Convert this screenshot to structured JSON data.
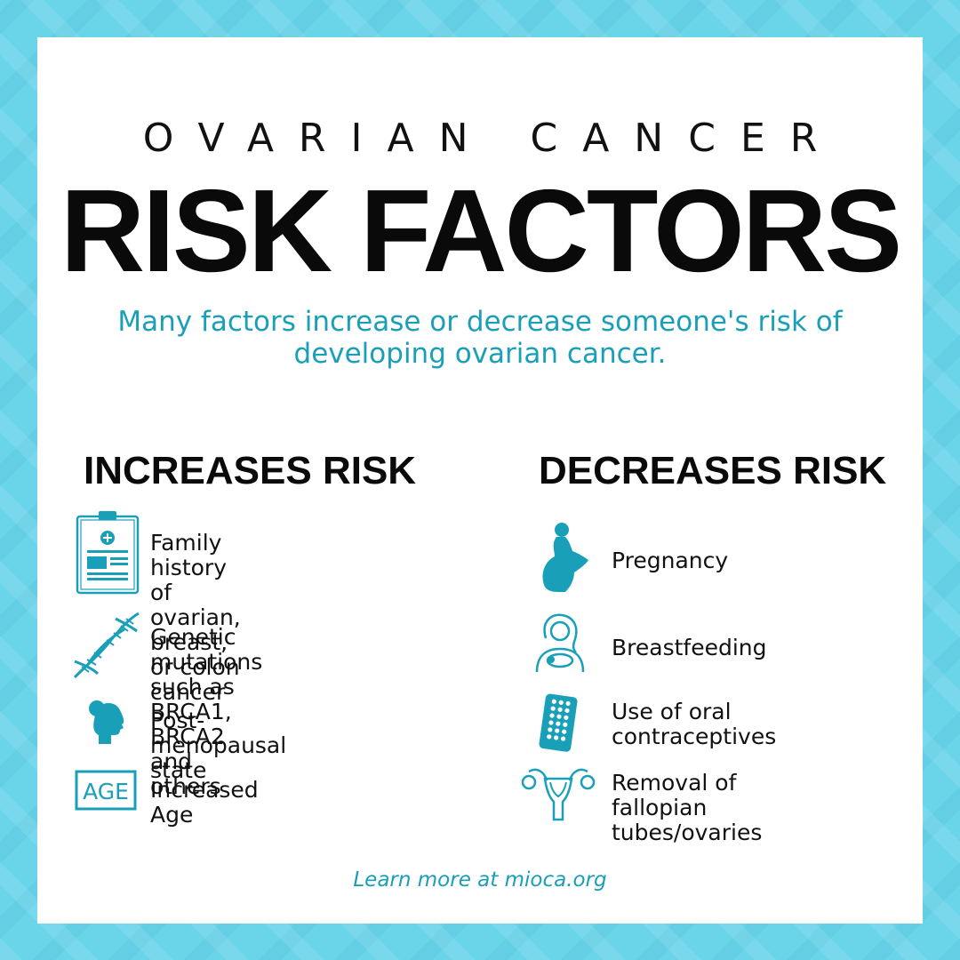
{
  "header": {
    "eyebrow": "OVARIAN CANCER",
    "title": "RISK FACTORS",
    "subtitle": "Many factors increase or decrease someone's risk of developing ovarian cancer."
  },
  "increases": {
    "heading": "INCREASES RISK",
    "items": [
      {
        "icon": "clipboard-icon",
        "label": "Family history of ovarian,\nbreast, or colon cancer"
      },
      {
        "icon": "dna-icon",
        "label": "Genetic mutations such as\nBRCA1, BRCA2 and others"
      },
      {
        "icon": "woman-profile-icon",
        "label": "Post-menopausal state"
      },
      {
        "icon": "age-icon",
        "icon_text": "AGE",
        "label": "Increased Age"
      }
    ]
  },
  "decreases": {
    "heading": "DECREASES RISK",
    "items": [
      {
        "icon": "pregnant-woman-icon",
        "label": "Pregnancy"
      },
      {
        "icon": "breastfeeding-icon",
        "label": "Breastfeeding"
      },
      {
        "icon": "pill-pack-icon",
        "label": "Use of oral\ncontraceptives"
      },
      {
        "icon": "uterus-icon",
        "label": "Removal of fallopian\ntubes/ovaries"
      }
    ]
  },
  "footer": {
    "text": "Learn more at mioca.org"
  },
  "colors": {
    "accent": "#1a9fb8",
    "border": "#6ad4e9",
    "text": "#111111"
  }
}
